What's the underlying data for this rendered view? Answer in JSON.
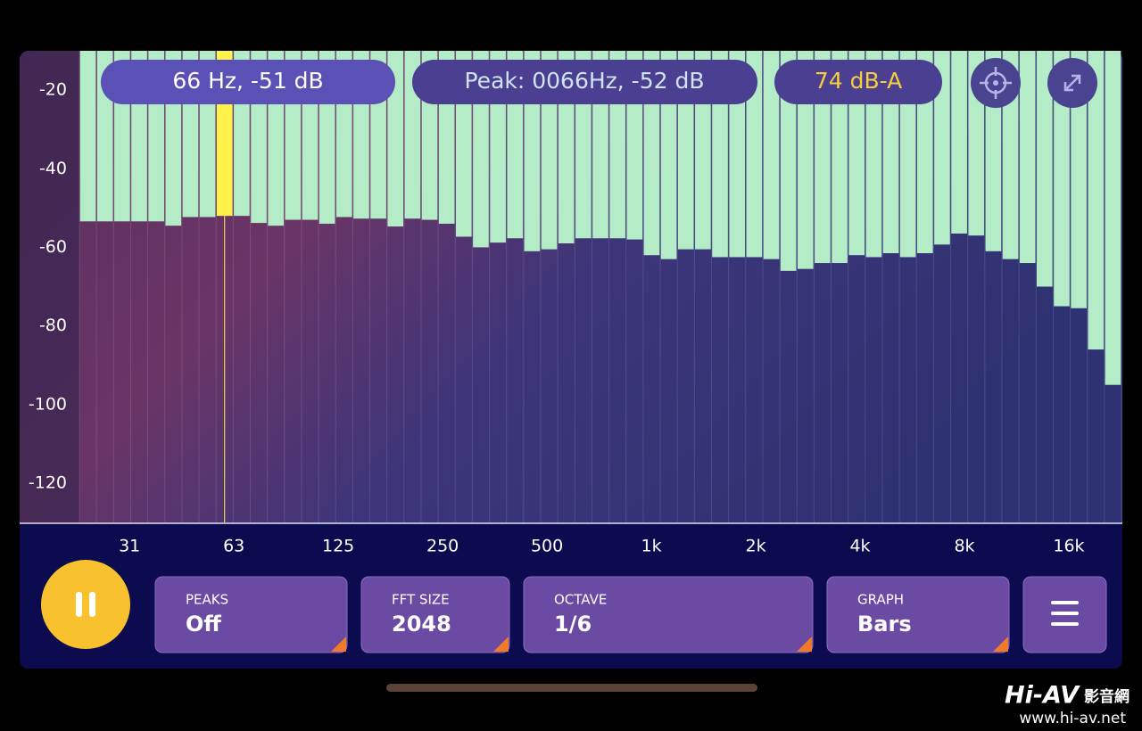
{
  "chart_data": {
    "type": "bar",
    "values": [
      -53.4,
      -53.4,
      -53.4,
      -53.4,
      -53.4,
      -54.5,
      -52.3,
      -52.3,
      -52,
      -52,
      -53.8,
      -54.5,
      -53,
      -53,
      -54,
      -52.3,
      -52.7,
      -52.7,
      -54.7,
      -52.7,
      -53,
      -54,
      -57.3,
      -60,
      -58.8,
      -57.7,
      -61,
      -60.5,
      -59,
      -57.7,
      -57.7,
      -57.7,
      -58,
      -62,
      -63,
      -60.5,
      -60.5,
      -62.5,
      -62.5,
      -62.5,
      -63,
      -66,
      -65.5,
      -64,
      -64,
      -62,
      -62.5,
      -61.5,
      -62.5,
      -61.5,
      -59.3,
      -56.5,
      -57,
      -61,
      -63,
      -64,
      -70,
      -75,
      -75.5,
      -86,
      -95
    ],
    "color": "#b3ecc6",
    "highlight": {
      "index": 8,
      "color": "#fff24a"
    },
    "ylim": [
      -130,
      -10
    ],
    "yticks": [
      -20,
      -40,
      -60,
      -80,
      -100,
      -120
    ],
    "xscale": "log",
    "xlim": [
      22.4,
      22700
    ],
    "xticks": [
      {
        "value": 31.25,
        "label": "31"
      },
      {
        "value": 62.5,
        "label": "63"
      },
      {
        "value": 125,
        "label": "125"
      },
      {
        "value": 250,
        "label": "250"
      },
      {
        "value": 500,
        "label": "500"
      },
      {
        "value": 1000,
        "label": "1k"
      },
      {
        "value": 2000,
        "label": "2k"
      },
      {
        "value": 4000,
        "label": "4k"
      },
      {
        "value": 8000,
        "label": "8k"
      },
      {
        "value": 16000,
        "label": "16k"
      }
    ],
    "grid": false
  },
  "readouts": {
    "cursor": "66 Hz, -51 dB",
    "peak": "Peak: 0066Hz, -52 dB",
    "level": "74 dB-A"
  },
  "controls": [
    {
      "label": "PEAKS",
      "value": "Off"
    },
    {
      "label": "FFT SIZE",
      "value": "2048"
    },
    {
      "label": "OCTAVE",
      "value": "1/6"
    },
    {
      "label": "GRAPH",
      "value": "Bars"
    }
  ],
  "watermark": {
    "brand": "Hi-AV",
    "brand_cn": "影音網",
    "url": "www.hi-av.net"
  }
}
